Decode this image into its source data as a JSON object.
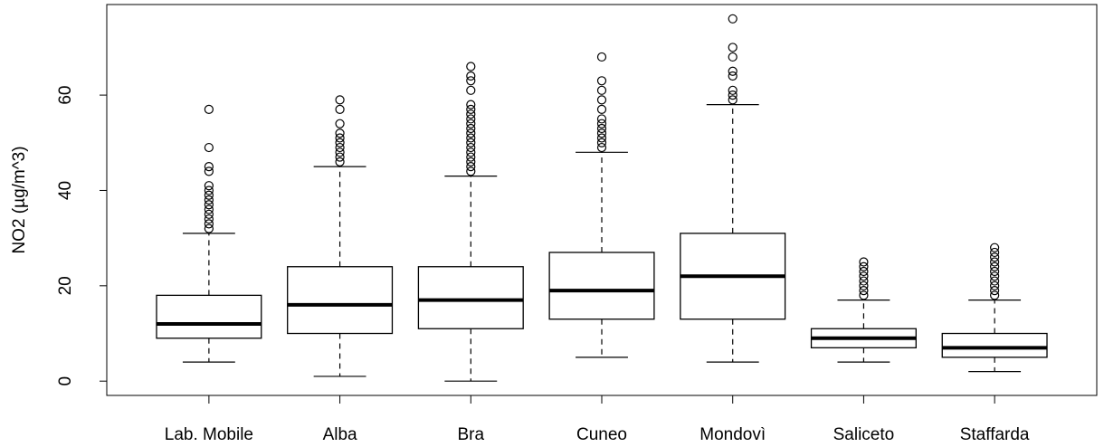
{
  "chart_data": {
    "type": "box",
    "y_label": "NO2 (µg/m^3)",
    "categories": [
      "Lab. Mobile",
      "Alba",
      "Bra",
      "Cuneo",
      "Mondovì",
      "Saliceto",
      "Staffarda"
    ],
    "boxes": [
      {
        "whislo": 4,
        "q1": 9,
        "med": 12,
        "q3": 18,
        "whishi": 31,
        "fliers": [
          32,
          33,
          34,
          35,
          36,
          37,
          38,
          39,
          40,
          41,
          44,
          45,
          49,
          57
        ]
      },
      {
        "whislo": 1,
        "q1": 10,
        "med": 16,
        "q3": 24,
        "whishi": 45,
        "fliers": [
          46,
          47,
          48,
          49,
          50,
          51,
          52,
          54,
          57,
          59
        ]
      },
      {
        "whislo": 0,
        "q1": 11,
        "med": 17,
        "q3": 24,
        "whishi": 43,
        "fliers": [
          44,
          45,
          46,
          47,
          48,
          49,
          50,
          51,
          52,
          53,
          54,
          55,
          56,
          57,
          58,
          61,
          63,
          64,
          66
        ]
      },
      {
        "whislo": 5,
        "q1": 13,
        "med": 19,
        "q3": 27,
        "whishi": 48,
        "fliers": [
          49,
          50,
          51,
          52,
          53,
          54,
          55,
          57,
          59,
          61,
          63,
          68
        ]
      },
      {
        "whislo": 4,
        "q1": 13,
        "med": 22,
        "q3": 31,
        "whishi": 58,
        "fliers": [
          59,
          60,
          61,
          64,
          65,
          68,
          70,
          76
        ]
      },
      {
        "whislo": 4,
        "q1": 7,
        "med": 9,
        "q3": 11,
        "whishi": 17,
        "fliers": [
          18,
          19,
          20,
          21,
          22,
          23,
          24,
          25
        ]
      },
      {
        "whislo": 2,
        "q1": 5,
        "med": 7,
        "q3": 10,
        "whishi": 17,
        "fliers": [
          18,
          19,
          20,
          21,
          22,
          23,
          24,
          25,
          26,
          27,
          28
        ]
      }
    ],
    "ylim": [
      -3,
      79
    ],
    "yticks": [
      0,
      20,
      40,
      60
    ]
  }
}
